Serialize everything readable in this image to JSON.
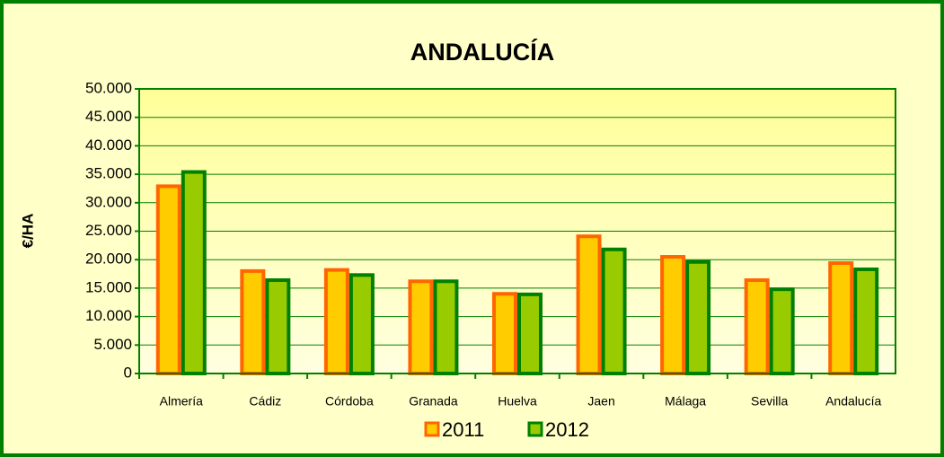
{
  "chart_data": {
    "type": "bar",
    "title": "ANDALUCÍA",
    "ylabel": "€/HA",
    "categories": [
      "Almería",
      "Cádiz",
      "Córdoba",
      "Granada",
      "Huelva",
      "Jaen",
      "Málaga",
      "Sevilla",
      "Andalucía"
    ],
    "series": [
      {
        "name": "2011",
        "color": "#ffcc00",
        "edgecolor": "#ff6600",
        "values": [
          32900,
          18000,
          18200,
          16200,
          14000,
          24100,
          20500,
          16400,
          19400
        ]
      },
      {
        "name": "2012",
        "color": "#99cc00",
        "edgecolor": "#008000",
        "values": [
          35400,
          16400,
          17300,
          16200,
          13900,
          21800,
          19600,
          14800,
          18300
        ]
      }
    ],
    "ylim": [
      0,
      50000
    ],
    "yticks": [
      0,
      {
        "value": 5000,
        "label": "5.000"
      },
      {
        "value": 10000,
        "label": "10.000"
      },
      {
        "value": 15000,
        "label": "15.000"
      },
      {
        "value": 20000,
        "label": "20.000"
      },
      {
        "value": 25000,
        "label": "25.000"
      },
      {
        "value": 30000,
        "label": "30.000"
      },
      {
        "value": 35000,
        "label": "35.000"
      },
      {
        "value": 40000,
        "label": "40.000"
      },
      {
        "value": 45000,
        "label": "45.000"
      },
      {
        "value": 50000,
        "label": "50.000"
      }
    ],
    "grid": true,
    "legend": "bottom"
  }
}
